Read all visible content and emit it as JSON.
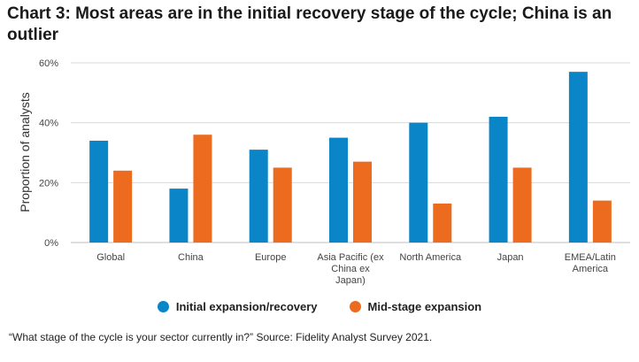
{
  "title": "Chart 3: Most areas are in the initial recovery stage of the cycle; China is an outlier",
  "source": "“What stage of the cycle is your sector currently in?” Source: Fidelity Analyst Survey 2021.",
  "colors": {
    "initial": "#0a86c8",
    "mid": "#ec6b1f",
    "grid": "#d9d9d9",
    "axis": "#bfbfbf"
  },
  "chart_data": {
    "type": "bar",
    "title": "Chart 3: Most areas are in the initial recovery stage of the cycle; China is an outlier",
    "xlabel": "",
    "ylabel": "Proportion of analysts",
    "ylim": [
      0,
      60
    ],
    "yticks": [
      "0%",
      "20%",
      "40%",
      "60%"
    ],
    "grid": true,
    "legend_position": "bottom",
    "categories": [
      [
        "Global"
      ],
      [
        "China"
      ],
      [
        "Europe"
      ],
      [
        "Asia Pacific (ex",
        "China ex",
        "Japan)"
      ],
      [
        "North America"
      ],
      [
        "Japan"
      ],
      [
        "EMEA/Latin",
        "America"
      ]
    ],
    "series": [
      {
        "name": "Initial expansion/recovery",
        "values": [
          34,
          18,
          31,
          35,
          40,
          42,
          57
        ]
      },
      {
        "name": "Mid-stage expansion",
        "values": [
          24,
          36,
          25,
          27,
          13,
          25,
          14
        ]
      }
    ]
  }
}
